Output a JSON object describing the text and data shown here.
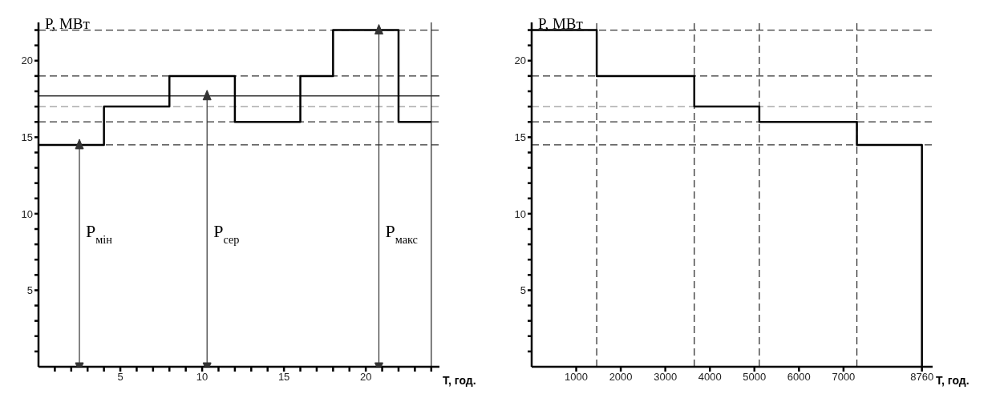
{
  "chart_data": [
    {
      "type": "step",
      "xlabel": "T, год.",
      "ylabel": "P, МВт",
      "xlim": [
        0,
        24.5
      ],
      "ylim": [
        0,
        22.5
      ],
      "xticks": [
        {
          "value": 1,
          "label": null
        },
        {
          "value": 2,
          "label": null
        },
        {
          "value": 3,
          "label": null
        },
        {
          "value": 4,
          "label": null
        },
        5,
        {
          "value": 6,
          "label": null
        },
        {
          "value": 7,
          "label": null
        },
        {
          "value": 8,
          "label": null
        },
        {
          "value": 9,
          "label": null
        },
        10,
        {
          "value": 11,
          "label": null
        },
        {
          "value": 12,
          "label": null
        },
        {
          "value": 13,
          "label": null
        },
        {
          "value": 14,
          "label": null
        },
        15,
        {
          "value": 16,
          "label": null
        },
        {
          "value": 17,
          "label": null
        },
        {
          "value": 18,
          "label": null
        },
        {
          "value": 19,
          "label": null
        },
        20,
        {
          "value": 21,
          "label": null
        },
        {
          "value": 22,
          "label": null
        },
        {
          "value": 23,
          "label": null
        },
        {
          "value": 24,
          "label": null
        }
      ],
      "yticks": [
        {
          "value": 1,
          "label": null
        },
        {
          "value": 2,
          "label": null
        },
        {
          "value": 3,
          "label": null
        },
        {
          "value": 4,
          "label": null
        },
        5,
        {
          "value": 6,
          "label": null
        },
        {
          "value": 7,
          "label": null
        },
        {
          "value": 8,
          "label": null
        },
        {
          "value": 9,
          "label": null
        },
        10,
        {
          "value": 11,
          "label": null
        },
        {
          "value": 12,
          "label": null
        },
        {
          "value": 13,
          "label": null
        },
        {
          "value": 14,
          "label": null
        },
        15,
        {
          "value": 16,
          "label": null
        },
        {
          "value": 17,
          "label": null
        },
        {
          "value": 18,
          "label": null
        },
        {
          "value": 19,
          "label": null
        },
        20,
        {
          "value": 21,
          "label": null
        },
        {
          "value": 22,
          "label": null
        }
      ],
      "series": [
        {
          "color": "#000000",
          "x": [
            0,
            4,
            8,
            12,
            16,
            18,
            22,
            24
          ],
          "values": [
            14.5,
            17,
            19,
            16,
            19,
            22,
            16,
            16
          ]
        },
        {
          "marker": "triangle",
          "color": "#333333",
          "x": [
            2.5,
            2.5
          ],
          "values": [
            0,
            14.5
          ]
        },
        {
          "marker": "triangle",
          "color": "#333333",
          "x": [
            10.3,
            10.3
          ],
          "values": [
            0,
            17.7
          ]
        },
        {
          "marker": "triangle",
          "color": "#333333",
          "x": [
            20.8,
            20.8
          ],
          "values": [
            0,
            22
          ]
        }
      ],
      "ref_lines": [
        {
          "axis": "y",
          "value": 14.5,
          "color": "#333333",
          "line_style": "dashed"
        },
        {
          "axis": "y",
          "value": 16,
          "color": "#333333",
          "line_style": "dashed"
        },
        {
          "axis": "y",
          "value": 17,
          "color": "#999999",
          "line_style": "dashed"
        },
        {
          "axis": "y",
          "value": 19,
          "color": "#333333",
          "line_style": "dashed"
        },
        {
          "axis": "y",
          "value": 22,
          "color": "#333333",
          "line_style": "dashed"
        },
        {
          "axis": "y",
          "value": 17.7,
          "color": "#333333",
          "line_style": "solid"
        },
        {
          "axis": "x",
          "value": 24,
          "color": "#333333",
          "line_style": "solid"
        }
      ],
      "annotations": [
        {
          "text": "P$_{мін}$",
          "x": 2.5,
          "y": 8.5
        },
        {
          "text": "P$_{сер}$",
          "x": 10.3,
          "y": 8.5
        },
        {
          "text": "P$_{макс}$",
          "x": 20.8,
          "y": 8.5
        }
      ]
    },
    {
      "type": "step",
      "xlabel": "T, год.",
      "ylabel": "P, МВт",
      "xlim": [
        0,
        9000
      ],
      "ylim": [
        0,
        22.5
      ],
      "xticks": [
        1000,
        2000,
        3000,
        4000,
        5000,
        6000,
        7000,
        8760
      ],
      "yticks": [
        {
          "value": 1,
          "label": null
        },
        {
          "value": 2,
          "label": null
        },
        {
          "value": 3,
          "label": null
        },
        {
          "value": 4,
          "label": null
        },
        5,
        {
          "value": 6,
          "label": null
        },
        {
          "value": 7,
          "label": null
        },
        {
          "value": 8,
          "label": null
        },
        {
          "value": 9,
          "label": null
        },
        10,
        {
          "value": 11,
          "label": null
        },
        {
          "value": 12,
          "label": null
        },
        {
          "value": 13,
          "label": null
        },
        {
          "value": 14,
          "label": null
        },
        15,
        {
          "value": 16,
          "label": null
        },
        {
          "value": 17,
          "label": null
        },
        {
          "value": 18,
          "label": null
        },
        {
          "value": 19,
          "label": null
        },
        20,
        {
          "value": 21,
          "label": null
        },
        {
          "value": 22,
          "label": null
        }
      ],
      "series": [
        {
          "color": "#000000",
          "x": [
            0,
            1460,
            3650,
            5110,
            7300,
            8760,
            8760
          ],
          "values": [
            22,
            19,
            17,
            16,
            14.5,
            14.5,
            0
          ]
        }
      ],
      "ref_lines": [
        {
          "axis": "y",
          "value": 14.5,
          "color": "#333333",
          "line_style": "dashed"
        },
        {
          "axis": "y",
          "value": 16,
          "color": "#333333",
          "line_style": "dashed"
        },
        {
          "axis": "y",
          "value": 17,
          "color": "#999999",
          "line_style": "dashed"
        },
        {
          "axis": "y",
          "value": 19,
          "color": "#333333",
          "line_style": "dashed"
        },
        {
          "axis": "y",
          "value": 22,
          "color": "#333333",
          "line_style": "dashed"
        },
        {
          "axis": "x",
          "value": 1460,
          "color": "#333333",
          "line_style": "dashed"
        },
        {
          "axis": "x",
          "value": 3650,
          "color": "#333333",
          "line_style": "dashed"
        },
        {
          "axis": "x",
          "value": 5110,
          "color": "#333333",
          "line_style": "dashed"
        },
        {
          "axis": "x",
          "value": 7300,
          "color": "#333333",
          "line_style": "dashed"
        }
      ]
    }
  ]
}
